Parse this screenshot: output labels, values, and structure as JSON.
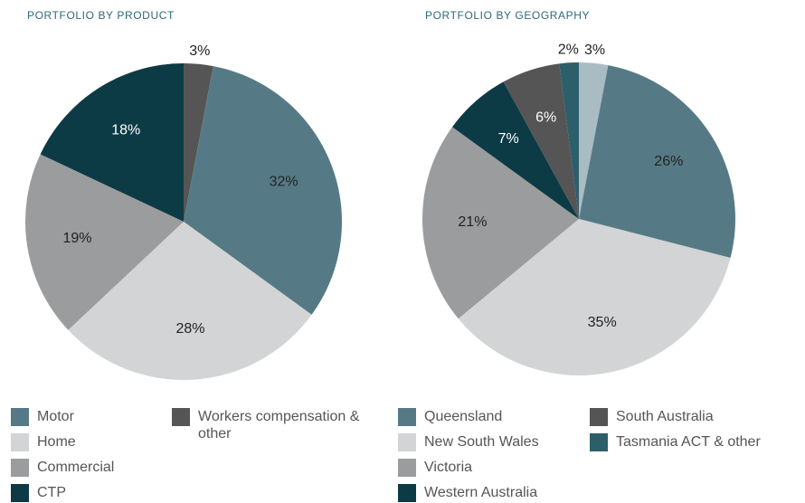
{
  "chart_data": [
    {
      "type": "pie",
      "title": "PORTFOLIO BY PRODUCT",
      "categories": [
        "Motor",
        "Home",
        "Commercial",
        "CTP",
        "Workers compensation & other"
      ],
      "values": [
        32,
        28,
        19,
        18,
        3
      ],
      "value_labels": [
        "32%",
        "28%",
        "19%",
        "18%",
        "3%"
      ],
      "colors": [
        "#557a85",
        "#d3d4d5",
        "#9b9c9d",
        "#0d3b45",
        "#555555"
      ]
    },
    {
      "type": "pie",
      "title": "PORTFOLIO BY GEOGRAPHY",
      "categories": [
        "Queensland",
        "New South Wales",
        "Victoria",
        "Western Australia",
        "South Australia",
        "Tasmania ACT & other",
        null
      ],
      "values": [
        26,
        35,
        21,
        7,
        6,
        2,
        3
      ],
      "value_labels": [
        "26%",
        "35%",
        "21%",
        "7%",
        "6%",
        "2%",
        "3%"
      ],
      "colors": [
        "#557a85",
        "#d3d4d5",
        "#9b9c9d",
        "#0d3b45",
        "#555555",
        "#2d5f6b",
        "#a9bcc3"
      ]
    }
  ]
}
